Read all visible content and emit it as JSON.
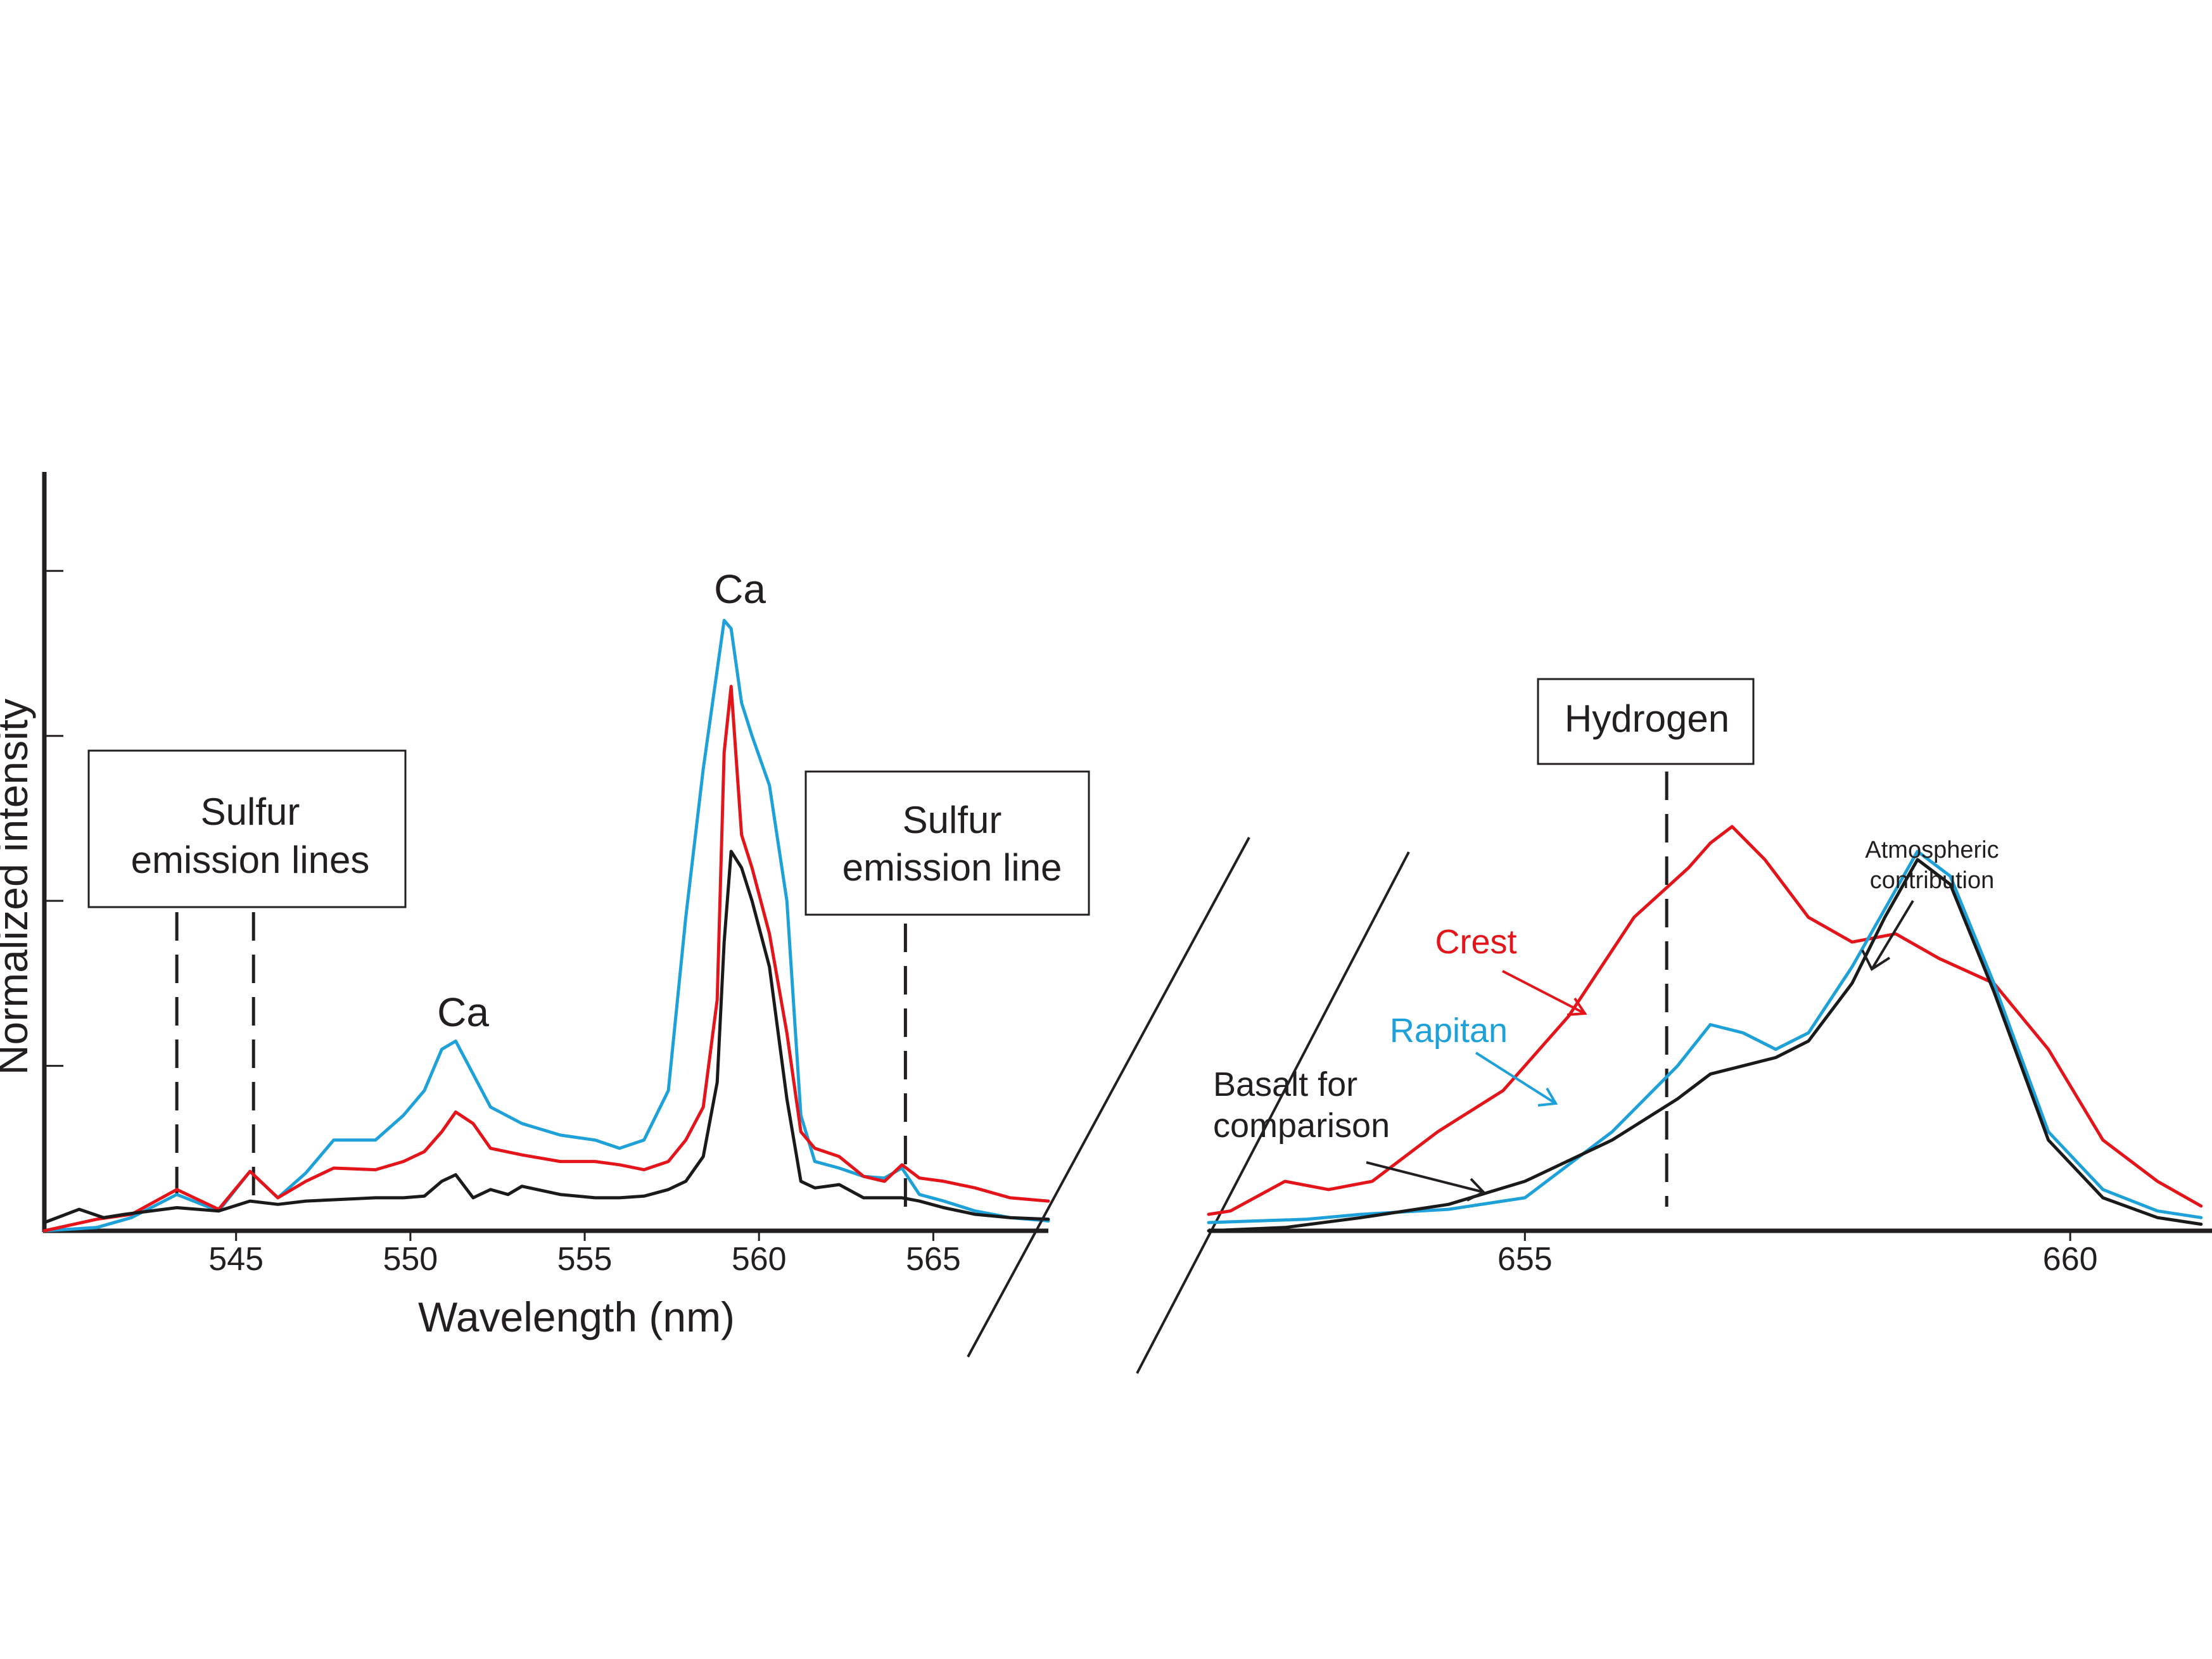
{
  "colors": {
    "crest": "#e3151b",
    "rapitan": "#1ea1d9",
    "basalt": "#1a1a1a",
    "axis": "#231f20"
  },
  "chart_data": [
    {
      "type": "line",
      "panel": "left",
      "xlabel": "Wavelength (nm)",
      "ylabel": "Normalized intensity",
      "xlim": [
        539.5,
        568.3
      ],
      "ylim": [
        0,
        4.6
      ],
      "x_ticks": [
        545,
        550,
        555,
        560,
        565
      ],
      "x_tick_labels": [
        "545",
        "550",
        "555",
        "560",
        "565"
      ],
      "y_ticks": [
        1,
        2,
        3,
        4
      ],
      "series": [
        {
          "name": "Rapitan",
          "color": "#1ea1d9",
          "x": [
            539.5,
            541,
            542,
            543.3,
            544.5,
            545.4,
            546.2,
            547,
            547.8,
            549,
            549.8,
            550.4,
            550.9,
            551.3,
            551.8,
            552.3,
            553.2,
            554.3,
            555.3,
            556,
            556.7,
            557.4,
            557.9,
            558.4,
            558.8,
            559.0,
            559.2,
            559.5,
            559.8,
            560.3,
            560.8,
            561.2,
            561.6,
            562.3,
            563,
            563.6,
            564.1,
            564.6,
            565.3,
            566.2,
            567.2,
            568.3
          ],
          "y": [
            0.0,
            0.02,
            0.08,
            0.22,
            0.12,
            0.36,
            0.2,
            0.35,
            0.55,
            0.55,
            0.7,
            0.85,
            1.1,
            1.15,
            0.95,
            0.75,
            0.65,
            0.58,
            0.55,
            0.5,
            0.55,
            0.85,
            1.9,
            2.8,
            3.4,
            3.7,
            3.65,
            3.2,
            3.0,
            2.7,
            2.0,
            0.7,
            0.42,
            0.38,
            0.33,
            0.32,
            0.38,
            0.22,
            0.18,
            0.12,
            0.08,
            0.06
          ]
        },
        {
          "name": "Crest",
          "color": "#e3151b",
          "x": [
            539.5,
            541,
            542,
            543.3,
            544.5,
            545.4,
            546.2,
            547,
            547.8,
            549,
            549.8,
            550.4,
            550.9,
            551.3,
            551.8,
            552.3,
            553.2,
            554.3,
            555.3,
            556,
            556.7,
            557.4,
            557.9,
            558.4,
            558.8,
            559.0,
            559.2,
            559.5,
            559.8,
            560.3,
            560.8,
            561.2,
            561.6,
            562.3,
            563,
            563.6,
            564.1,
            564.6,
            565.3,
            566.2,
            567.2,
            568.3
          ],
          "y": [
            0.0,
            0.07,
            0.1,
            0.25,
            0.13,
            0.36,
            0.2,
            0.3,
            0.38,
            0.37,
            0.42,
            0.48,
            0.6,
            0.72,
            0.65,
            0.5,
            0.46,
            0.42,
            0.42,
            0.4,
            0.37,
            0.42,
            0.55,
            0.75,
            1.4,
            2.9,
            3.3,
            2.4,
            2.2,
            1.8,
            1.2,
            0.6,
            0.5,
            0.45,
            0.33,
            0.3,
            0.4,
            0.32,
            0.3,
            0.26,
            0.2,
            0.18
          ]
        },
        {
          "name": "Basalt for comparison",
          "color": "#1a1a1a",
          "x": [
            539.5,
            540.5,
            541.2,
            541.8,
            543.3,
            544.5,
            545.4,
            546.2,
            547,
            548,
            549,
            549.8,
            550.4,
            550.9,
            551.3,
            551.8,
            552.3,
            552.8,
            553.2,
            554.3,
            555.3,
            556,
            556.7,
            557.4,
            557.9,
            558.4,
            558.8,
            559.0,
            559.2,
            559.5,
            559.8,
            560.3,
            560.8,
            561.2,
            561.6,
            562.3,
            563,
            563.6,
            564.1,
            564.6,
            565.3,
            566.2,
            567.2,
            568.3
          ],
          "y": [
            0.05,
            0.13,
            0.08,
            0.1,
            0.14,
            0.12,
            0.18,
            0.16,
            0.18,
            0.19,
            0.2,
            0.2,
            0.21,
            0.3,
            0.34,
            0.2,
            0.25,
            0.22,
            0.27,
            0.22,
            0.2,
            0.2,
            0.21,
            0.25,
            0.3,
            0.45,
            0.9,
            1.75,
            2.3,
            2.2,
            2.0,
            1.6,
            0.8,
            0.3,
            0.26,
            0.28,
            0.2,
            0.2,
            0.2,
            0.18,
            0.14,
            0.1,
            0.08,
            0.07
          ]
        }
      ],
      "annotations": {
        "ca_major": "Ca",
        "ca_minor": "Ca",
        "sulfur_lines_box": [
          "Sulfur",
          "emission lines"
        ],
        "sulfur_line_box": [
          "Sulfur",
          "emission line"
        ]
      },
      "reference_lines": [
        543.3,
        545.5,
        564.2
      ]
    },
    {
      "type": "line",
      "panel": "right",
      "xlabel": "",
      "ylabel": "",
      "xlim": [
        652.1,
        661.3
      ],
      "ylim": [
        0,
        4.6
      ],
      "x_ticks": [
        655,
        660
      ],
      "x_tick_labels": [
        "655",
        "660"
      ],
      "series": [
        {
          "name": "Crest",
          "color": "#e3151b",
          "x": [
            652.1,
            652.3,
            652.8,
            653.2,
            653.6,
            654.2,
            654.8,
            655.4,
            656.0,
            656.5,
            656.7,
            656.9,
            657.2,
            657.6,
            658.0,
            658.4,
            658.8,
            659.3,
            659.8,
            660.3,
            660.8,
            661.2
          ],
          "y": [
            0.1,
            0.12,
            0.3,
            0.25,
            0.3,
            0.6,
            0.85,
            1.3,
            1.9,
            2.2,
            2.35,
            2.45,
            2.25,
            1.9,
            1.75,
            1.8,
            1.65,
            1.5,
            1.1,
            0.55,
            0.3,
            0.15
          ]
        },
        {
          "name": "Rapitan",
          "color": "#1ea1d9",
          "x": [
            652.1,
            653.0,
            653.5,
            654.3,
            655.0,
            655.8,
            656.4,
            656.7,
            657.0,
            657.3,
            657.6,
            658.0,
            658.3,
            658.6,
            658.9,
            659.3,
            659.8,
            660.3,
            660.8,
            661.2
          ],
          "y": [
            0.05,
            0.07,
            0.1,
            0.13,
            0.2,
            0.6,
            1.0,
            1.25,
            1.2,
            1.1,
            1.2,
            1.6,
            1.95,
            2.3,
            2.15,
            1.5,
            0.6,
            0.25,
            0.12,
            0.08
          ]
        },
        {
          "name": "Basalt for comparison",
          "color": "#1a1a1a",
          "x": [
            652.1,
            652.8,
            653.5,
            654.3,
            655.0,
            655.8,
            656.4,
            656.7,
            657.0,
            657.3,
            657.6,
            658.0,
            658.3,
            658.6,
            658.9,
            659.3,
            659.8,
            660.3,
            660.8,
            661.2
          ],
          "y": [
            0.0,
            0.02,
            0.08,
            0.16,
            0.3,
            0.55,
            0.8,
            0.95,
            1.0,
            1.05,
            1.15,
            1.5,
            1.9,
            2.25,
            2.1,
            1.45,
            0.55,
            0.2,
            0.08,
            0.04
          ]
        }
      ],
      "annotations": {
        "hydrogen_box": "Hydrogen",
        "atmospheric": [
          "Atmospheric",
          "contribution"
        ],
        "crest_label": "Crest",
        "rapitan_label": "Rapitan",
        "basalt_label": [
          "Basalt for",
          "comparison"
        ]
      },
      "reference_lines": [
        656.3
      ]
    }
  ]
}
